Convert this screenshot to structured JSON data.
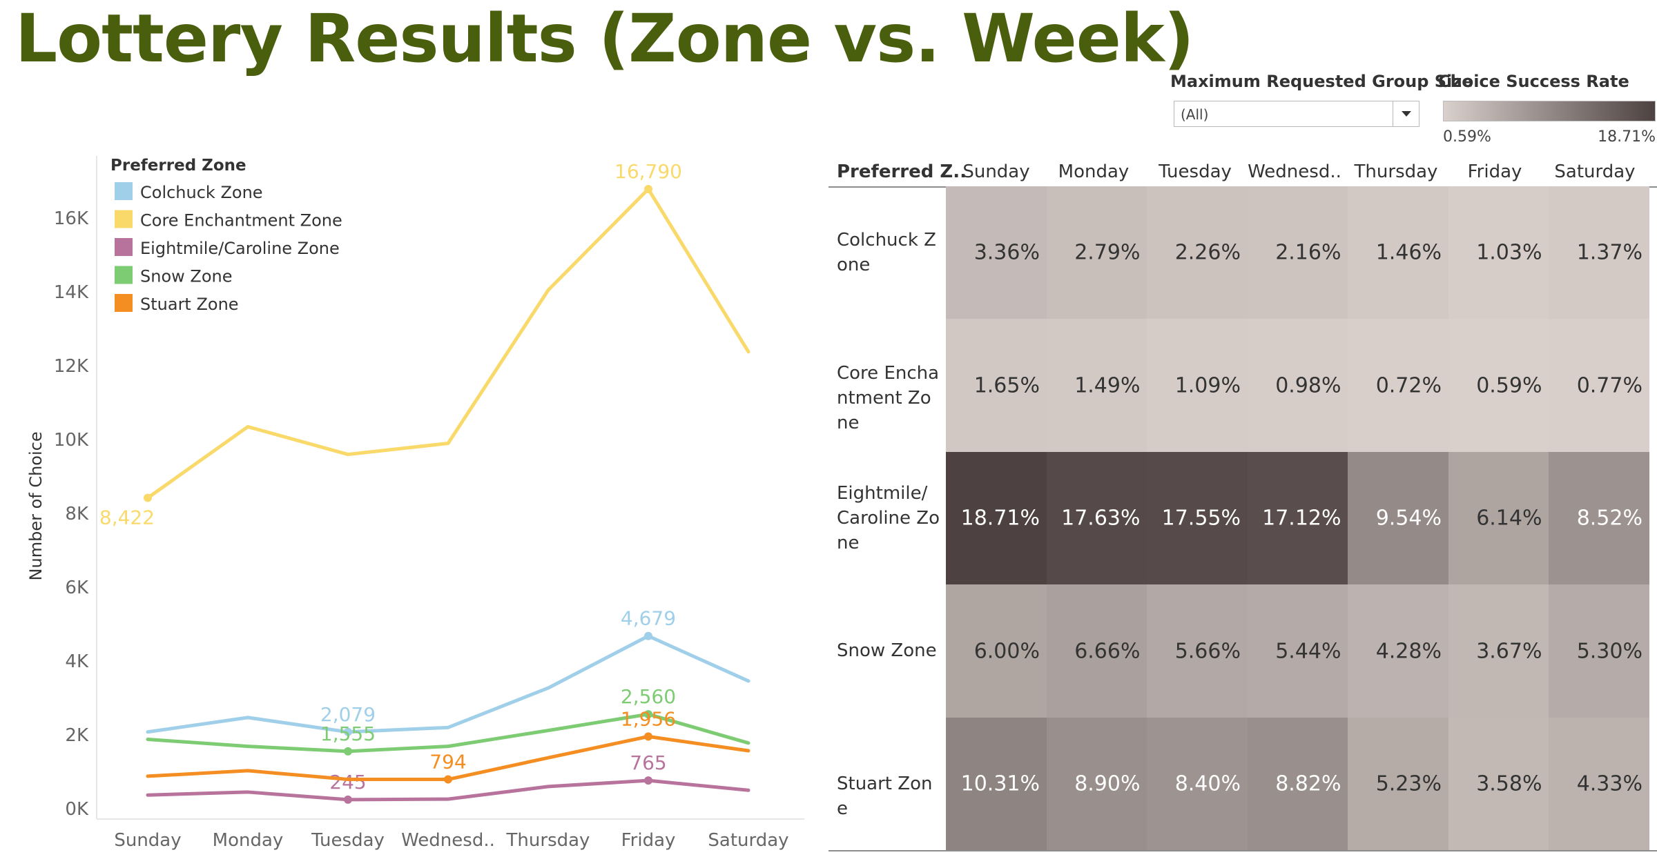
{
  "title": "Lottery Results (Zone vs. Week)",
  "filter": {
    "label": "Maximum Requested Group Size",
    "value": "(All)"
  },
  "color_legend": {
    "label": "Choice Success Rate",
    "min": "0.59%",
    "max": "18.71%",
    "min_color": "#d9d0cc",
    "max_color": "#4d4241"
  },
  "chart_data": [
    {
      "type": "line",
      "x": [
        "Sunday",
        "Monday",
        "Tuesday",
        "Wednesd..",
        "Thursday",
        "Friday",
        "Saturday"
      ],
      "ylabel": "Number of Choice",
      "ylim": [
        0,
        17500
      ],
      "yticks": [
        0,
        2000,
        4000,
        6000,
        8000,
        10000,
        12000,
        14000,
        16000
      ],
      "ytick_labels": [
        "0K",
        "2K",
        "4K",
        "6K",
        "8K",
        "10K",
        "12K",
        "14K",
        "16K"
      ],
      "legend_title": "Preferred Zone",
      "legend_position": "top-left",
      "series": [
        {
          "name": "Colchuck Zone",
          "color": "#9fcfe9",
          "values": [
            2080,
            2470,
            2079,
            2200,
            3270,
            4679,
            3460
          ],
          "labels": [
            {
              "index": 2,
              "text": "2,079"
            },
            {
              "index": 5,
              "text": "4,679"
            }
          ]
        },
        {
          "name": "Core Enchantment Zone",
          "color": "#fad96b",
          "values": [
            8422,
            10350,
            9600,
            9900,
            14050,
            16790,
            12380
          ],
          "labels": [
            {
              "index": 0,
              "text": "8,422"
            },
            {
              "index": 5,
              "text": "16,790"
            }
          ]
        },
        {
          "name": "Eightmile/Caroline Zone",
          "color": "#b8739c",
          "values": [
            370,
            450,
            245,
            260,
            600,
            765,
            500
          ],
          "labels": [
            {
              "index": 2,
              "text": "245"
            },
            {
              "index": 5,
              "text": "765"
            }
          ]
        },
        {
          "name": "Snow Zone",
          "color": "#7dcb72",
          "values": [
            1880,
            1690,
            1555,
            1690,
            2120,
            2560,
            1780
          ],
          "labels": [
            {
              "index": 2,
              "text": "1,555"
            },
            {
              "index": 5,
              "text": "2,560"
            }
          ]
        },
        {
          "name": "Stuart  Zone",
          "color": "#f58e22",
          "values": [
            880,
            1030,
            794,
            794,
            1380,
            1956,
            1570
          ],
          "labels": [
            {
              "index": 3,
              "text": "794"
            },
            {
              "index": 5,
              "text": "1,956"
            }
          ]
        }
      ]
    },
    {
      "type": "heatmap",
      "row_header": "Preferred Z..",
      "columns": [
        "Sunday",
        "Monday",
        "Tuesday",
        "Wednesd..",
        "Thursday",
        "Friday",
        "Saturday"
      ],
      "rows": [
        {
          "label": "Colchuck Zone",
          "values": [
            3.36,
            2.79,
            2.26,
            2.16,
            1.46,
            1.03,
            1.37
          ],
          "texts": [
            "3.36%",
            "2.79%",
            "2.26%",
            "2.16%",
            "1.46%",
            "1.03%",
            "1.37%"
          ]
        },
        {
          "label": "Core Enchantment Zone",
          "values": [
            1.65,
            1.49,
            1.09,
            0.98,
            0.72,
            0.59,
            0.77
          ],
          "texts": [
            "1.65%",
            "1.49%",
            "1.09%",
            "0.98%",
            "0.72%",
            "0.59%",
            "0.77%"
          ]
        },
        {
          "label": "Eightmile/ Caroline Zone",
          "values": [
            18.71,
            17.63,
            17.55,
            17.12,
            9.54,
            6.14,
            8.52
          ],
          "texts": [
            "18.71%",
            "17.63%",
            "17.55%",
            "17.12%",
            "9.54%",
            "6.14%",
            "8.52%"
          ]
        },
        {
          "label": "Snow Zone",
          "values": [
            6.0,
            6.66,
            5.66,
            5.44,
            4.28,
            3.67,
            5.3
          ],
          "texts": [
            "6.00%",
            "6.66%",
            "5.66%",
            "5.44%",
            "4.28%",
            "3.67%",
            "5.30%"
          ]
        },
        {
          "label": "Stuart  Zone",
          "values": [
            10.31,
            8.9,
            8.4,
            8.82,
            5.23,
            3.58,
            4.33
          ],
          "texts": [
            "10.31%",
            "8.90%",
            "8.40%",
            "8.82%",
            "5.23%",
            "3.58%",
            "4.33%"
          ]
        }
      ],
      "min": 0.59,
      "max": 18.71
    }
  ]
}
